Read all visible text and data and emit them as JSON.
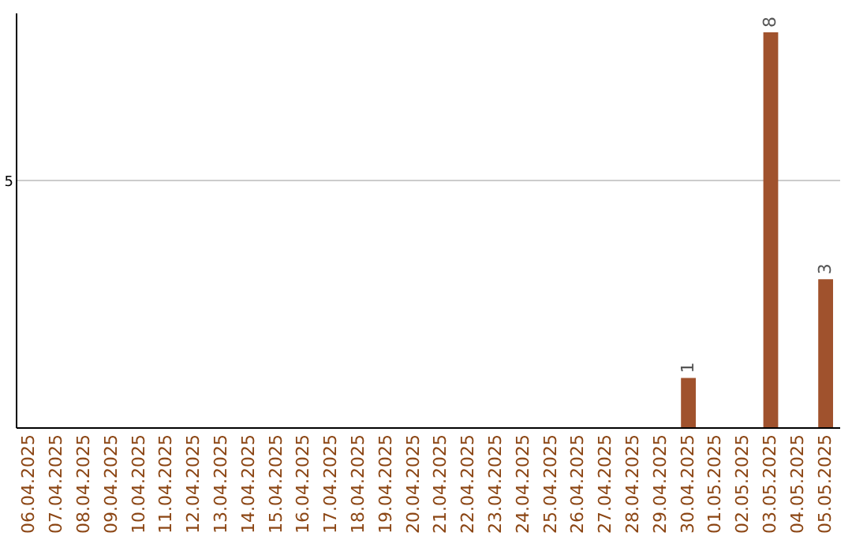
{
  "chart_data": {
    "type": "bar",
    "categories": [
      "06.04.2025",
      "07.04.2025",
      "08.04.2025",
      "09.04.2025",
      "10.04.2025",
      "11.04.2025",
      "12.04.2025",
      "13.04.2025",
      "14.04.2025",
      "15.04.2025",
      "16.04.2025",
      "17.04.2025",
      "18.04.2025",
      "19.04.2025",
      "20.04.2025",
      "21.04.2025",
      "22.04.2025",
      "23.04.2025",
      "24.04.2025",
      "25.04.2025",
      "26.04.2025",
      "27.04.2025",
      "28.04.2025",
      "29.04.2025",
      "30.04.2025",
      "01.05.2025",
      "02.05.2025",
      "03.05.2025",
      "04.05.2025",
      "05.05.2025"
    ],
    "values": [
      null,
      null,
      null,
      null,
      null,
      null,
      null,
      null,
      null,
      null,
      null,
      null,
      null,
      null,
      null,
      null,
      null,
      null,
      null,
      null,
      null,
      null,
      null,
      null,
      1,
      null,
      null,
      8,
      null,
      3
    ],
    "data_labels": true,
    "color": "#a0522d",
    "ylim": [
      0,
      8.4
    ],
    "yticks": [
      {
        "value": 0,
        "label": null
      },
      5
    ],
    "grid": "y"
  }
}
